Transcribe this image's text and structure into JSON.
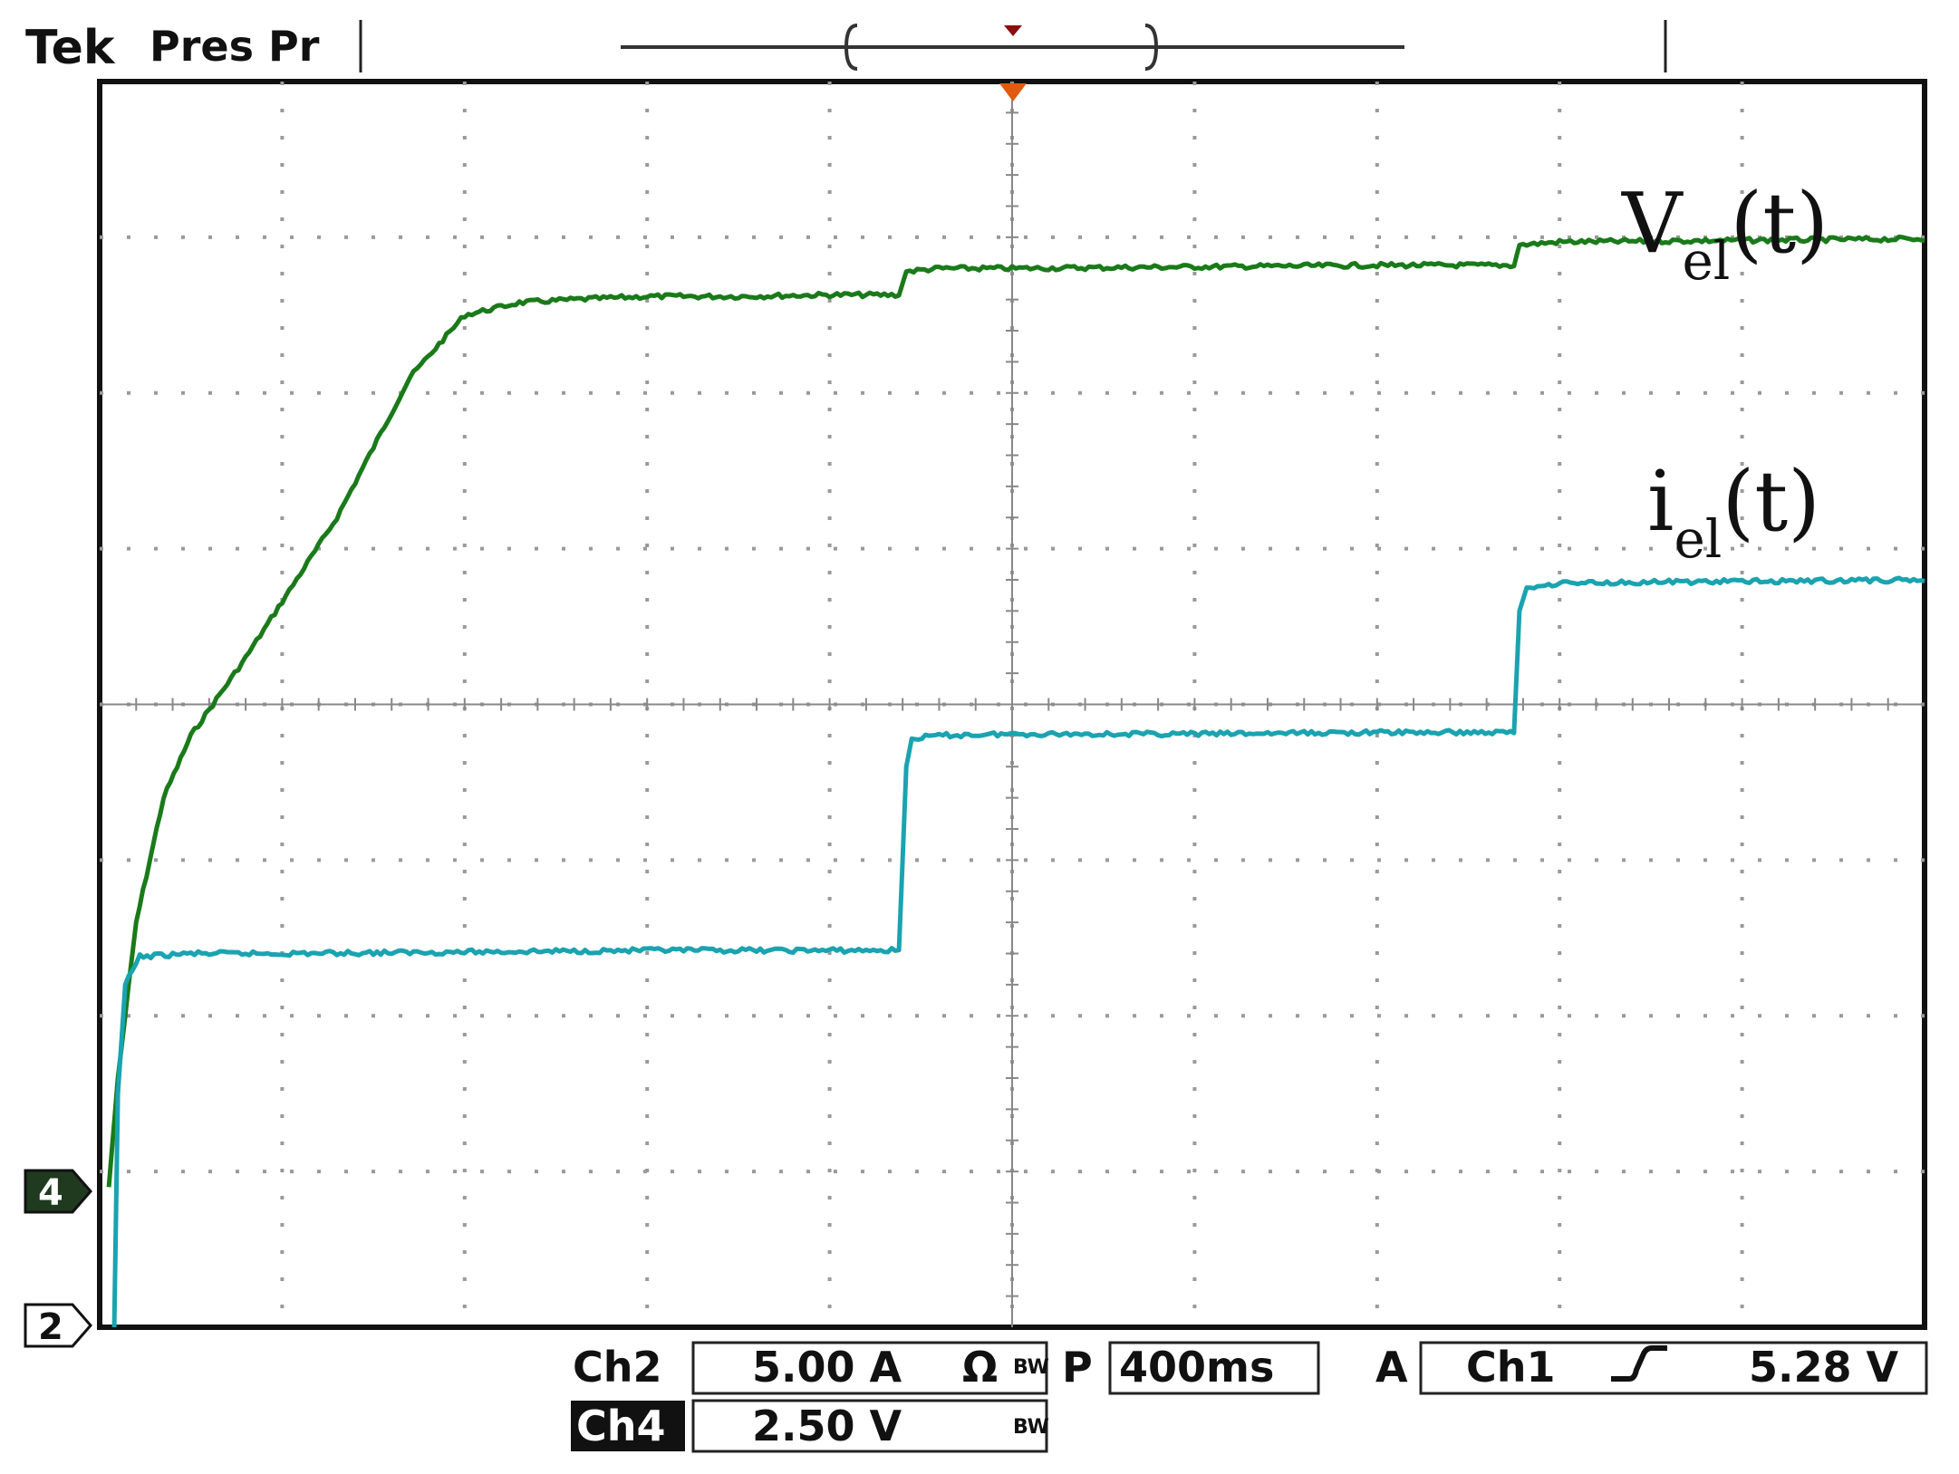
{
  "header": {
    "brand": "Tek",
    "status": "Pres Pr"
  },
  "markers": {
    "ch4": "4",
    "ch2": "2"
  },
  "trace_labels": {
    "v_main": "V",
    "v_sub": "el",
    "v_arg": "(t)",
    "i_main": "i",
    "i_sub": "el",
    "i_arg": "(t)"
  },
  "readout": {
    "ch2_label": "Ch2",
    "ch2_scale": "5.00 A",
    "ch2_unit_icon": "Ω",
    "ch4_label": "Ch4",
    "ch4_scale": "2.50 V",
    "timebase_prefix": "P",
    "timebase": "400ms",
    "trigger_prefix": "A",
    "trigger_source": "Ch1",
    "trigger_slope_icon": "rising-edge-icon",
    "trigger_level": "5.28 V"
  },
  "colors": {
    "voltage": "#1a7a1a",
    "current": "#1aa3b0",
    "grid": "#9a9a9a",
    "trigger": "#e05a10"
  },
  "chart_data": {
    "type": "line",
    "grid": true,
    "x_divisions": 10,
    "y_divisions": 8,
    "xlim": [
      0,
      10
    ],
    "ylim": [
      0,
      8
    ],
    "series": [
      {
        "name": "V_el(t)",
        "x": [
          0.05,
          0.1,
          0.2,
          0.35,
          0.5,
          0.8,
          1.3,
          1.7,
          2.0,
          2.3,
          2.6,
          3.0,
          3.5,
          4.0,
          4.38,
          4.42,
          4.6,
          5.0,
          6.0,
          7.0,
          7.75,
          7.78,
          8.0,
          9.0,
          10.0
        ],
        "y": [
          0.9,
          1.6,
          2.6,
          3.4,
          3.8,
          4.3,
          5.2,
          6.1,
          6.5,
          6.58,
          6.6,
          6.62,
          6.62,
          6.63,
          6.63,
          6.78,
          6.8,
          6.8,
          6.81,
          6.82,
          6.82,
          6.95,
          6.97,
          6.98,
          6.99
        ]
      },
      {
        "name": "i_el(t)",
        "x": [
          0.08,
          0.1,
          0.14,
          0.22,
          0.5,
          1.0,
          2.0,
          3.0,
          4.0,
          4.38,
          4.42,
          4.45,
          4.6,
          5.0,
          6.0,
          7.0,
          7.75,
          7.78,
          7.82,
          8.0,
          9.0,
          10.0
        ],
        "y": [
          0.0,
          1.5,
          2.2,
          2.38,
          2.4,
          2.4,
          2.41,
          2.42,
          2.42,
          2.42,
          3.6,
          3.78,
          3.8,
          3.81,
          3.81,
          3.82,
          3.82,
          4.6,
          4.75,
          4.78,
          4.79,
          4.8
        ]
      }
    ]
  }
}
